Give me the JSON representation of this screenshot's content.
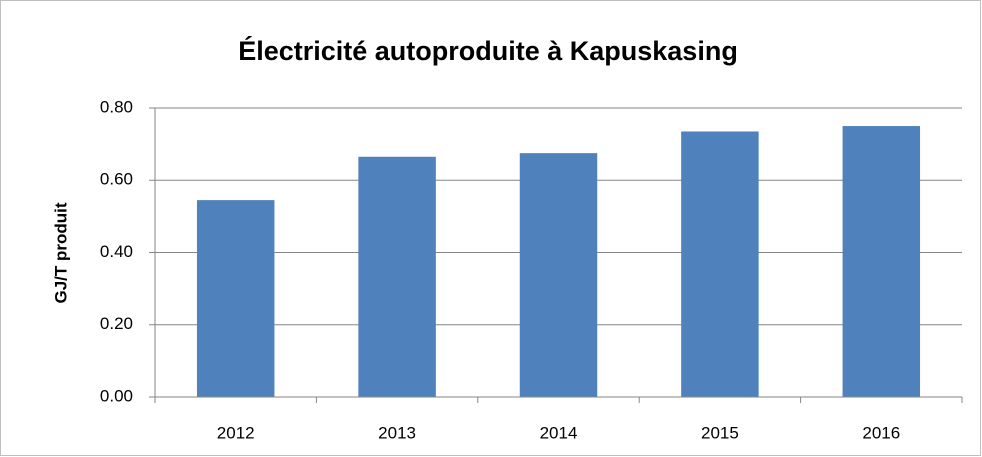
{
  "chart_data": {
    "type": "bar",
    "title": "Électricité autoproduite à Kapuskasing",
    "y_label": "GJ/T produit",
    "categories": [
      "2012",
      "2013",
      "2014",
      "2015",
      "2016"
    ],
    "values": [
      0.545,
      0.665,
      0.675,
      0.735,
      0.75
    ],
    "color": "#4f81bd",
    "ylim": [
      0,
      0.8
    ],
    "yticks": [
      {
        "value": 0,
        "label": "0.00"
      },
      {
        "value": 0.2,
        "label": "0.20"
      },
      {
        "value": 0.4,
        "label": "0.40"
      },
      {
        "value": 0.6,
        "label": "0.60"
      },
      {
        "value": 0.8,
        "label": "0.80"
      }
    ],
    "grid": true
  }
}
